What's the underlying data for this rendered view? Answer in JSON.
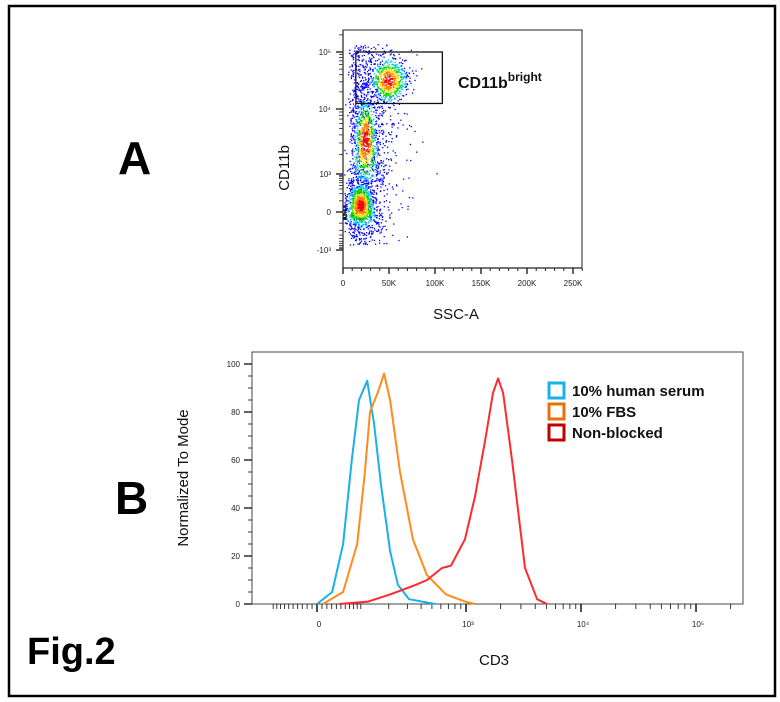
{
  "figure": {
    "label": "Fig.2",
    "panel_a": "A",
    "panel_b": "B"
  },
  "chart_data": [
    {
      "type": "scatter",
      "subtype": "flow-cytometry density dot plot",
      "xlabel": "SSC-A",
      "ylabel": "CD11b",
      "x_scale": "linear",
      "y_scale": "biexponential",
      "xlim": [
        0,
        260000
      ],
      "ylim": [
        -1500,
        200000
      ],
      "x_ticks": [
        {
          "value": 0,
          "label": "0"
        },
        {
          "value": 50000,
          "label": "50K"
        },
        {
          "value": 100000,
          "label": "100K"
        },
        {
          "value": 150000,
          "label": "150K"
        },
        {
          "value": 200000,
          "label": "200K"
        },
        {
          "value": 250000,
          "label": "250K"
        }
      ],
      "y_ticks": [
        {
          "value": 100000,
          "label": "10⁵"
        },
        {
          "value": 10000,
          "label": "10⁴"
        },
        {
          "value": 1000,
          "label": "10³"
        },
        {
          "value": 0,
          "label": "0"
        },
        {
          "value": -1000,
          "label": "-10³"
        }
      ],
      "density_peaks": [
        {
          "ssc": 18500,
          "cd11b": 60
        },
        {
          "ssc": 24000,
          "cd11b": 3300
        },
        {
          "ssc": 49000,
          "cd11b": 32000
        }
      ],
      "gate": {
        "label_main": "CD11b",
        "label_sup": "bright",
        "ssc_range": [
          14000,
          108000
        ],
        "cd11b_range": [
          12500,
          100000
        ]
      },
      "density_colors": [
        "#0000ff",
        "#00c8ff",
        "#00e000",
        "#ffe000",
        "#ff8000",
        "#ff0000"
      ],
      "grid": false
    },
    {
      "type": "line",
      "subtype": "histogram overlay",
      "xlabel": "CD3",
      "ylabel": "Normalized To Mode",
      "x_scale": "biexponential",
      "ylim": [
        0,
        100
      ],
      "grid": false,
      "legend_position": "top-right",
      "x_ticks": [
        {
          "value": 0,
          "label": "0"
        },
        {
          "value": 1000,
          "label": "10³"
        },
        {
          "value": 10000,
          "label": "10⁴"
        },
        {
          "value": 100000,
          "label": "10⁵"
        }
      ],
      "y_ticks": [
        0,
        20,
        40,
        60,
        80,
        100
      ],
      "series": [
        {
          "name": "10% human serum",
          "color": "#1ab0e8",
          "points": [
            [
              0,
              0
            ],
            [
              31,
              5
            ],
            [
              55,
              25
            ],
            [
              76,
              60
            ],
            [
              95,
              85
            ],
            [
              119,
              93
            ],
            [
              142,
              75
            ],
            [
              167,
              50
            ],
            [
              206,
              22
            ],
            [
              245,
              8
            ],
            [
              311,
              2
            ],
            [
              533,
              0
            ]
          ]
        },
        {
          "name": "10% FBS",
          "color": "#ff8c1a",
          "legend_color": "#e8700a",
          "points": [
            [
              12,
              0
            ],
            [
              55,
              5
            ],
            [
              90,
              25
            ],
            [
              112,
              55
            ],
            [
              128,
              80
            ],
            [
              155,
              88
            ],
            [
              180,
              96
            ],
            [
              206,
              85
            ],
            [
              256,
              55
            ],
            [
              337,
              27
            ],
            [
              452,
              12
            ],
            [
              666,
              4
            ],
            [
              980,
              1
            ],
            [
              1200,
              0
            ]
          ]
        },
        {
          "name": "Non-blocked",
          "color": "#ff2a2a",
          "legend_color": "#c00000",
          "points": [
            [
              46,
              0
            ],
            [
              122,
              1
            ],
            [
              206,
              4
            ],
            [
              359,
              8
            ],
            [
              452,
              10
            ],
            [
              615,
              15
            ],
            [
              738,
              16
            ],
            [
              980,
              27
            ],
            [
              1200,
              45
            ],
            [
              1490,
              70
            ],
            [
              1717,
              88
            ],
            [
              1900,
              94
            ],
            [
              2100,
              88
            ],
            [
              2510,
              60
            ],
            [
              3260,
              15
            ],
            [
              4150,
              2
            ],
            [
              5060,
              0
            ]
          ]
        }
      ]
    }
  ]
}
